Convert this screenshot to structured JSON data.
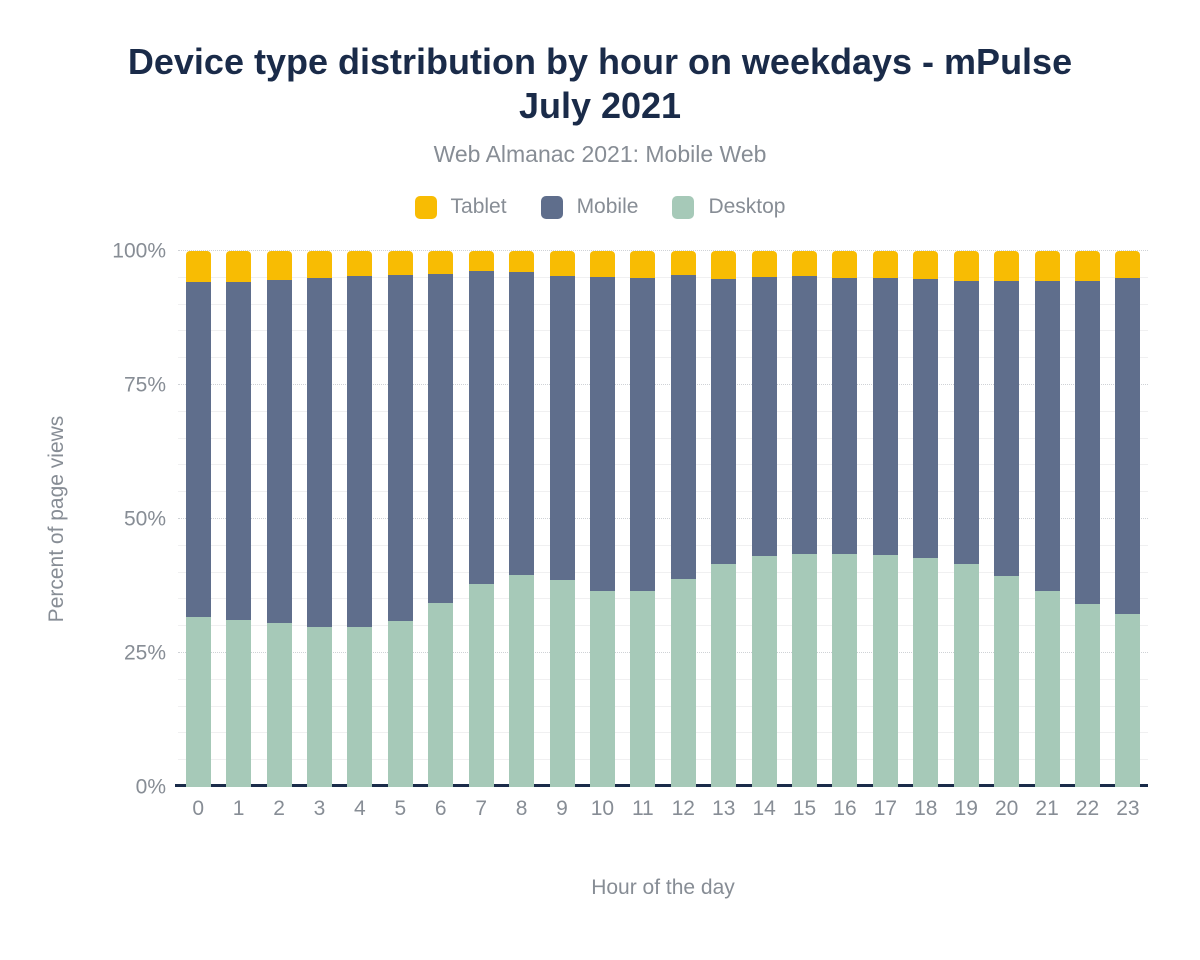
{
  "chart_data": {
    "type": "bar",
    "stacked": true,
    "title": "Device type distribution by hour on weekdays - mPulse July 2021",
    "subtitle": "Web Almanac 2021: Mobile Web",
    "xlabel": "Hour of the day",
    "ylabel": "Percent of page views",
    "legend_position": "top",
    "legend_order": [
      "Tablet",
      "Mobile",
      "Desktop"
    ],
    "stack_order_top_to_bottom": [
      "Tablet",
      "Mobile",
      "Desktop"
    ],
    "categories": [
      "0",
      "1",
      "2",
      "3",
      "4",
      "5",
      "6",
      "7",
      "8",
      "9",
      "10",
      "11",
      "12",
      "13",
      "14",
      "15",
      "16",
      "17",
      "18",
      "19",
      "20",
      "21",
      "22",
      "23"
    ],
    "series": [
      {
        "name": "Tablet",
        "color": "#f8bc03",
        "values": [
          5.8,
          5.8,
          5.4,
          5.0,
          4.6,
          4.4,
          4.3,
          3.8,
          4.0,
          4.6,
          4.8,
          5.1,
          4.5,
          5.3,
          4.8,
          4.7,
          5.1,
          5.1,
          5.3,
          5.5,
          5.5,
          5.6,
          5.5,
          5.1
        ]
      },
      {
        "name": "Mobile",
        "color": "#5f6e8c",
        "values": [
          62.4,
          63.0,
          64.0,
          65.2,
          65.6,
          64.6,
          61.4,
          58.3,
          56.4,
          56.8,
          58.7,
          58.4,
          56.6,
          53.1,
          52.1,
          51.9,
          51.5,
          51.7,
          51.9,
          52.8,
          55.1,
          57.8,
          60.3,
          62.6
        ]
      },
      {
        "name": "Desktop",
        "color": "#a6c9b8",
        "values": [
          31.8,
          31.2,
          30.6,
          29.8,
          29.8,
          31.0,
          34.3,
          37.9,
          39.6,
          38.6,
          36.5,
          36.5,
          38.9,
          41.6,
          43.1,
          43.4,
          43.4,
          43.2,
          42.8,
          41.7,
          39.4,
          36.6,
          34.2,
          32.3
        ]
      }
    ],
    "ylim": [
      0,
      100
    ],
    "yticks": [
      {
        "value": 0,
        "label": "0%"
      },
      {
        "value": 25,
        "label": "25%"
      },
      {
        "value": 50,
        "label": "50%"
      },
      {
        "value": 75,
        "label": "75%"
      },
      {
        "value": 100,
        "label": "100%"
      }
    ],
    "grid": {
      "minor_step": 5,
      "major_step": 25
    },
    "colors": {
      "title_text": "#1a2b49",
      "axis_text": "#878d95",
      "axis_line": "#1a2b49",
      "grid_minor": "#f0f0f1",
      "grid_major": "#cfd2d6",
      "background": "#ffffff"
    }
  }
}
